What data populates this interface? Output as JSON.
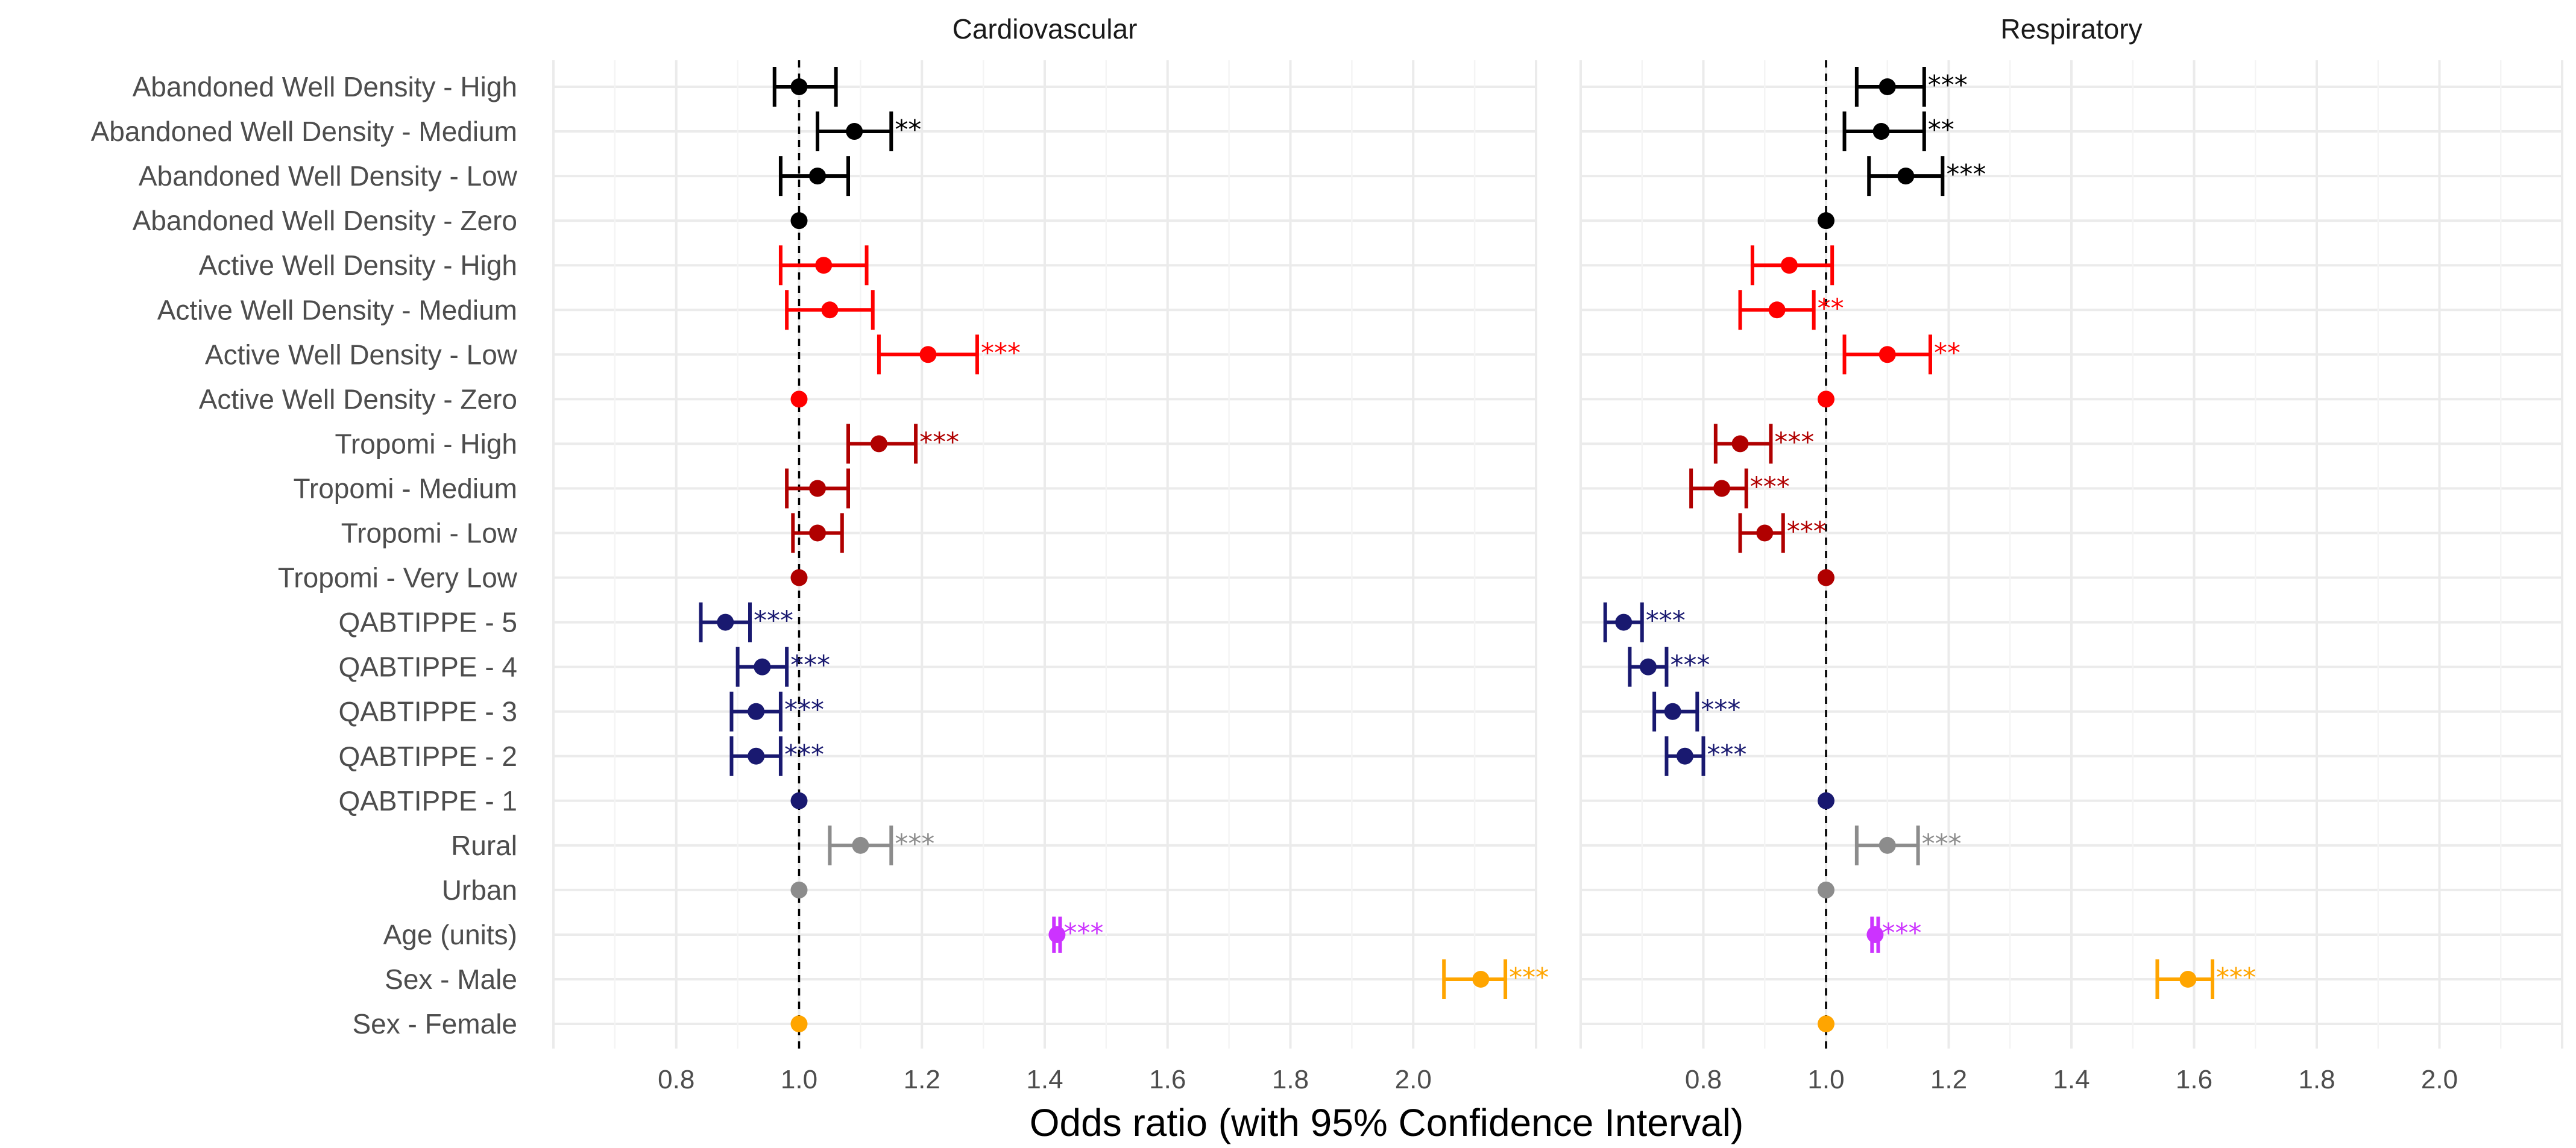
{
  "chart_data": {
    "type": "forest",
    "xlabel": "Odds ratio (with 95% Confidence Interval)",
    "xlim": [
      0.6,
      2.2
    ],
    "xticks": [
      0.8,
      1.0,
      1.2,
      1.4,
      1.6,
      1.8,
      2.0
    ],
    "xtick_labels": [
      "0.8",
      "1.0",
      "1.2",
      "1.4",
      "1.6",
      "1.8",
      "2.0"
    ],
    "reference_line": 1.0,
    "colors": {
      "abandoned": "#000000",
      "active": "#ff0000",
      "tropomi": "#b00000",
      "qabtippe": "#191970",
      "urbanicity": "#8c8c8c",
      "age": "#cc33ff",
      "sex": "#ffa500"
    },
    "rows": [
      {
        "label": "Abandoned  Well Density - High",
        "group": "abandoned"
      },
      {
        "label": "Abandoned  Well Density - Medium",
        "group": "abandoned"
      },
      {
        "label": "Abandoned  Well Density - Low",
        "group": "abandoned"
      },
      {
        "label": "Abandoned  Well Density - Zero",
        "group": "abandoned"
      },
      {
        "label": "Active Well Density - High",
        "group": "active"
      },
      {
        "label": "Active Well Density - Medium",
        "group": "active"
      },
      {
        "label": "Active Well Density - Low",
        "group": "active"
      },
      {
        "label": "Active Well Density - Zero",
        "group": "active"
      },
      {
        "label": "Tropomi - High",
        "group": "tropomi"
      },
      {
        "label": "Tropomi - Medium",
        "group": "tropomi"
      },
      {
        "label": "Tropomi - Low",
        "group": "tropomi"
      },
      {
        "label": "Tropomi - Very Low",
        "group": "tropomi"
      },
      {
        "label": "QABTIPPE - 5",
        "group": "qabtippe"
      },
      {
        "label": "QABTIPPE - 4",
        "group": "qabtippe"
      },
      {
        "label": "QABTIPPE - 3",
        "group": "qabtippe"
      },
      {
        "label": "QABTIPPE - 2",
        "group": "qabtippe"
      },
      {
        "label": "QABTIPPE - 1",
        "group": "qabtippe"
      },
      {
        "label": "Rural",
        "group": "urbanicity"
      },
      {
        "label": "Urban",
        "group": "urbanicity"
      },
      {
        "label": "Age (units)",
        "group": "age"
      },
      {
        "label": "Sex - Male",
        "group": "sex"
      },
      {
        "label": "Sex - Female",
        "group": "sex"
      }
    ],
    "panels": [
      {
        "title": "Cardiovascular",
        "estimates": [
          {
            "or": 1.0,
            "lo": 0.96,
            "hi": 1.06,
            "sig": ""
          },
          {
            "or": 1.09,
            "lo": 1.03,
            "hi": 1.15,
            "sig": "**"
          },
          {
            "or": 1.03,
            "lo": 0.97,
            "hi": 1.08,
            "sig": ""
          },
          {
            "or": 1.0,
            "lo": null,
            "hi": null,
            "sig": ""
          },
          {
            "or": 1.04,
            "lo": 0.97,
            "hi": 1.11,
            "sig": ""
          },
          {
            "or": 1.05,
            "lo": 0.98,
            "hi": 1.12,
            "sig": ""
          },
          {
            "or": 1.21,
            "lo": 1.13,
            "hi": 1.29,
            "sig": "***"
          },
          {
            "or": 1.0,
            "lo": null,
            "hi": null,
            "sig": ""
          },
          {
            "or": 1.13,
            "lo": 1.08,
            "hi": 1.19,
            "sig": "***"
          },
          {
            "or": 1.03,
            "lo": 0.98,
            "hi": 1.08,
            "sig": ""
          },
          {
            "or": 1.03,
            "lo": 0.99,
            "hi": 1.07,
            "sig": ""
          },
          {
            "or": 1.0,
            "lo": null,
            "hi": null,
            "sig": ""
          },
          {
            "or": 0.88,
            "lo": 0.84,
            "hi": 0.92,
            "sig": "***"
          },
          {
            "or": 0.94,
            "lo": 0.9,
            "hi": 0.98,
            "sig": "***"
          },
          {
            "or": 0.93,
            "lo": 0.89,
            "hi": 0.97,
            "sig": "***"
          },
          {
            "or": 0.93,
            "lo": 0.89,
            "hi": 0.97,
            "sig": "***"
          },
          {
            "or": 1.0,
            "lo": null,
            "hi": null,
            "sig": ""
          },
          {
            "or": 1.1,
            "lo": 1.05,
            "hi": 1.15,
            "sig": "***"
          },
          {
            "or": 1.0,
            "lo": null,
            "hi": null,
            "sig": ""
          },
          {
            "or": 1.42,
            "lo": 1.415,
            "hi": 1.425,
            "sig": "***"
          },
          {
            "or": 2.11,
            "lo": 2.05,
            "hi": 2.15,
            "sig": "***"
          },
          {
            "or": 1.0,
            "lo": null,
            "hi": null,
            "sig": ""
          }
        ]
      },
      {
        "title": "Respiratory",
        "estimates": [
          {
            "or": 1.1,
            "lo": 1.05,
            "hi": 1.16,
            "sig": "***"
          },
          {
            "or": 1.09,
            "lo": 1.03,
            "hi": 1.16,
            "sig": "**"
          },
          {
            "or": 1.13,
            "lo": 1.07,
            "hi": 1.19,
            "sig": "***"
          },
          {
            "or": 1.0,
            "lo": null,
            "hi": null,
            "sig": ""
          },
          {
            "or": 0.94,
            "lo": 0.88,
            "hi": 1.01,
            "sig": ""
          },
          {
            "or": 0.92,
            "lo": 0.86,
            "hi": 0.98,
            "sig": "**"
          },
          {
            "or": 1.1,
            "lo": 1.03,
            "hi": 1.17,
            "sig": "**"
          },
          {
            "or": 1.0,
            "lo": null,
            "hi": null,
            "sig": ""
          },
          {
            "or": 0.86,
            "lo": 0.82,
            "hi": 0.91,
            "sig": "***"
          },
          {
            "or": 0.83,
            "lo": 0.78,
            "hi": 0.87,
            "sig": "***"
          },
          {
            "or": 0.9,
            "lo": 0.86,
            "hi": 0.93,
            "sig": "***"
          },
          {
            "or": 1.0,
            "lo": null,
            "hi": null,
            "sig": ""
          },
          {
            "or": 0.67,
            "lo": 0.64,
            "hi": 0.7,
            "sig": "***"
          },
          {
            "or": 0.71,
            "lo": 0.68,
            "hi": 0.74,
            "sig": "***"
          },
          {
            "or": 0.75,
            "lo": 0.72,
            "hi": 0.79,
            "sig": "***"
          },
          {
            "or": 0.77,
            "lo": 0.74,
            "hi": 0.8,
            "sig": "***"
          },
          {
            "or": 1.0,
            "lo": null,
            "hi": null,
            "sig": ""
          },
          {
            "or": 1.1,
            "lo": 1.05,
            "hi": 1.15,
            "sig": "***"
          },
          {
            "or": 1.0,
            "lo": null,
            "hi": null,
            "sig": ""
          },
          {
            "or": 1.08,
            "lo": 1.075,
            "hi": 1.085,
            "sig": "***"
          },
          {
            "or": 1.59,
            "lo": 1.54,
            "hi": 1.63,
            "sig": "***"
          },
          {
            "or": 1.0,
            "lo": null,
            "hi": null,
            "sig": ""
          }
        ]
      }
    ]
  }
}
